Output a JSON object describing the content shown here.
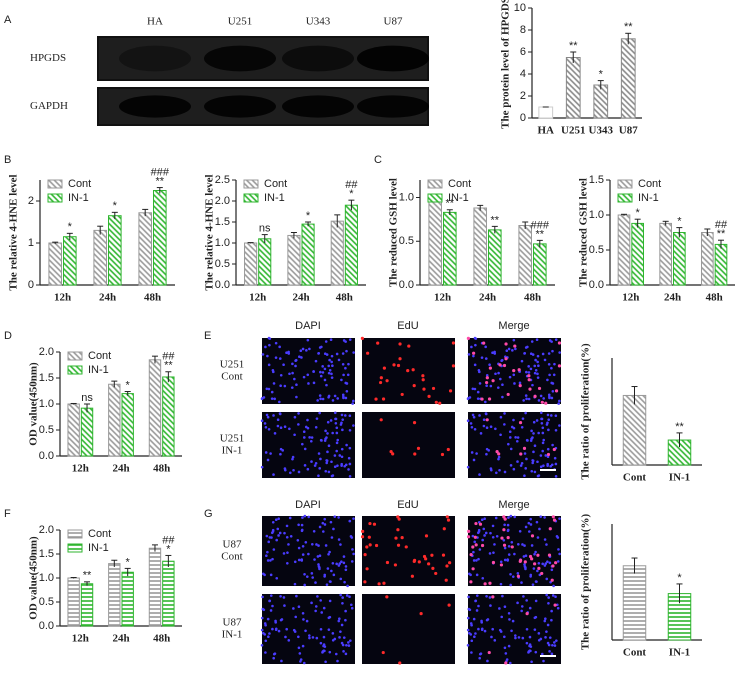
{
  "figure": {
    "panel_labels": [
      "A",
      "B",
      "C",
      "D",
      "E",
      "F",
      "G"
    ],
    "blot": {
      "lanes": [
        "HA",
        "U251",
        "U343",
        "U87"
      ],
      "rows": [
        "HPGDS",
        "GAPDH"
      ]
    },
    "microscopy": [
      {
        "columns": [
          "DAPI",
          "EdU",
          "Merge"
        ],
        "rows": [
          [
            "U251",
            "Cont"
          ],
          [
            "U251",
            "IN-1"
          ]
        ]
      },
      {
        "columns": [
          "DAPI",
          "EdU",
          "Merge"
        ],
        "rows": [
          [
            "U87",
            "Cont"
          ],
          [
            "U87",
            "IN-1"
          ]
        ]
      }
    ]
  },
  "chart_data": [
    {
      "type": "bar",
      "ylabel": "The protein level of HPGDS",
      "categories": [
        "HA",
        "U251",
        "U343",
        "U87"
      ],
      "values": [
        1,
        5.5,
        3.0,
        7.2
      ],
      "errors": [
        0,
        0.5,
        0.4,
        0.5
      ],
      "significance": [
        null,
        "**",
        "*",
        "**"
      ],
      "colors": [
        "#cccccc",
        "#888888",
        "#888888",
        "#888888"
      ],
      "hatch": "diagonal",
      "ylim": [
        0,
        10
      ],
      "yticks": [
        0,
        2,
        4,
        6,
        8,
        10
      ]
    },
    {
      "type": "grouped-bar",
      "ylabel": "The relative 4-HNE level",
      "categories": [
        "12h",
        "24h",
        "48h"
      ],
      "series": [
        {
          "name": "Cont",
          "color": "#999999",
          "values": [
            1.0,
            1.3,
            1.72
          ],
          "errors": [
            0.02,
            0.1,
            0.08
          ]
        },
        {
          "name": "IN-1",
          "color": "#2fb52f",
          "values": [
            1.15,
            1.65,
            2.25
          ],
          "errors": [
            0.08,
            0.08,
            0.07
          ],
          "significance": [
            "*",
            "*",
            "**"
          ],
          "significance2": [
            null,
            null,
            "###"
          ]
        }
      ],
      "ylim": [
        0,
        2.5
      ],
      "yticks": [
        0,
        1,
        2
      ],
      "hatch": "diagonal",
      "legend": "upper left"
    },
    {
      "type": "grouped-bar",
      "ylabel": "The relative 4-HNE level",
      "categories": [
        "12h",
        "24h",
        "48h"
      ],
      "series": [
        {
          "name": "Cont",
          "color": "#999999",
          "values": [
            1.0,
            1.18,
            1.52
          ],
          "errors": [
            0.01,
            0.07,
            0.15
          ]
        },
        {
          "name": "IN-1",
          "color": "#2fb52f",
          "values": [
            1.1,
            1.45,
            1.9
          ],
          "errors": [
            0.1,
            0.05,
            0.12
          ],
          "significance": [
            "ns",
            "*",
            "*"
          ],
          "significance2": [
            null,
            null,
            "##"
          ]
        }
      ],
      "ylim": [
        0,
        2.5
      ],
      "yticks": [
        {
          "value": 0,
          "label": "0.0"
        },
        0.5,
        {
          "value": 1,
          "label": "1.0"
        },
        1.5,
        {
          "value": 2,
          "label": "2.0"
        },
        2.5
      ],
      "hatch": "diagonal",
      "legend": "upper left"
    },
    {
      "type": "grouped-bar",
      "ylabel": "The reduced GSH level",
      "categories": [
        "12h",
        "24h",
        "48h"
      ],
      "series": [
        {
          "name": "Cont",
          "color": "#999999",
          "values": [
            1.0,
            0.88,
            0.68
          ],
          "errors": [
            0.01,
            0.03,
            0.04
          ]
        },
        {
          "name": "IN-1",
          "color": "#2fb52f",
          "values": [
            0.83,
            0.63,
            0.47
          ],
          "errors": [
            0.03,
            0.04,
            0.04
          ],
          "significance": [
            "**",
            "**",
            "**"
          ],
          "significance2": [
            null,
            null,
            "###"
          ]
        }
      ],
      "ylim": [
        0,
        1.2
      ],
      "yticks": [
        {
          "value": 0,
          "label": "0.0"
        },
        0.5,
        {
          "value": 1,
          "label": "1.0"
        }
      ],
      "hatch": "diagonal",
      "legend": "upper left"
    },
    {
      "type": "grouped-bar",
      "ylabel": "The reduced GSH level",
      "categories": [
        "12h",
        "24h",
        "48h"
      ],
      "series": [
        {
          "name": "Cont",
          "color": "#999999",
          "values": [
            1.0,
            0.88,
            0.75
          ],
          "errors": [
            0.01,
            0.03,
            0.05
          ]
        },
        {
          "name": "IN-1",
          "color": "#2fb52f",
          "values": [
            0.88,
            0.75,
            0.58
          ],
          "errors": [
            0.06,
            0.07,
            0.06
          ],
          "significance": [
            "*",
            "*",
            "**"
          ],
          "significance2": [
            null,
            null,
            "##"
          ]
        }
      ],
      "ylim": [
        0,
        1.5
      ],
      "yticks": [
        {
          "value": 0,
          "label": "0.0"
        },
        0.5,
        {
          "value": 1,
          "label": "1.0"
        },
        1.5
      ],
      "hatch": "diagonal",
      "legend": "upper left"
    },
    {
      "type": "grouped-bar",
      "ylabel": "OD value(450nm)",
      "categories": [
        "12h",
        "24h",
        "48h"
      ],
      "series": [
        {
          "name": "Cont",
          "color": "#999999",
          "values": [
            1.0,
            1.38,
            1.85
          ],
          "errors": [
            0.01,
            0.06,
            0.07
          ]
        },
        {
          "name": "IN-1",
          "color": "#2fb52f",
          "values": [
            0.92,
            1.2,
            1.52
          ],
          "errors": [
            0.08,
            0.04,
            0.1
          ],
          "significance": [
            "ns",
            "*",
            "**"
          ],
          "significance2": [
            null,
            null,
            "##"
          ]
        }
      ],
      "ylim": [
        0,
        2.0
      ],
      "yticks": [
        {
          "value": 0,
          "label": "0.0"
        },
        0.5,
        {
          "value": 1,
          "label": "1.0"
        },
        1.5,
        {
          "value": 2,
          "label": "2.0"
        }
      ],
      "hatch": "diagonal",
      "legend": "upper left"
    },
    {
      "type": "bar",
      "ylabel": "The ratio of proliferation(%)",
      "categories": [
        "Cont",
        "IN-1"
      ],
      "values": [
        19.5,
        7
      ],
      "errors": [
        2.5,
        2
      ],
      "significance": [
        null,
        "**"
      ],
      "colors": [
        "#999999",
        "#2fb52f"
      ],
      "hatch": "diagonal",
      "ylim": [
        0,
        30
      ]
    },
    {
      "type": "grouped-bar",
      "ylabel": "OD value(450nm)",
      "categories": [
        "12h",
        "24h",
        "48h"
      ],
      "series": [
        {
          "name": "Cont",
          "color": "#999999",
          "values": [
            1.0,
            1.3,
            1.62
          ],
          "errors": [
            0.01,
            0.07,
            0.07
          ]
        },
        {
          "name": "IN-1",
          "color": "#2fb52f",
          "values": [
            0.88,
            1.12,
            1.35
          ],
          "errors": [
            0.04,
            0.08,
            0.12
          ],
          "significance": [
            "**",
            "*",
            "*"
          ],
          "significance2": [
            null,
            null,
            "##"
          ]
        }
      ],
      "ylim": [
        0,
        2.0
      ],
      "yticks": [
        {
          "value": 0,
          "label": "0.0"
        },
        0.5,
        {
          "value": 1,
          "label": "1.0"
        },
        1.5,
        {
          "value": 2,
          "label": "2.0"
        }
      ],
      "hatch": "horizontal",
      "legend": "upper left"
    },
    {
      "type": "bar",
      "ylabel": "The ratio of proliferation(%)",
      "categories": [
        "Cont",
        "IN-1"
      ],
      "values": [
        19.2,
        12
      ],
      "errors": [
        2,
        2.5
      ],
      "significance": [
        null,
        "*"
      ],
      "colors": [
        "#999999",
        "#2fb52f"
      ],
      "hatch": "horizontal",
      "ylim": [
        0,
        30
      ]
    }
  ]
}
